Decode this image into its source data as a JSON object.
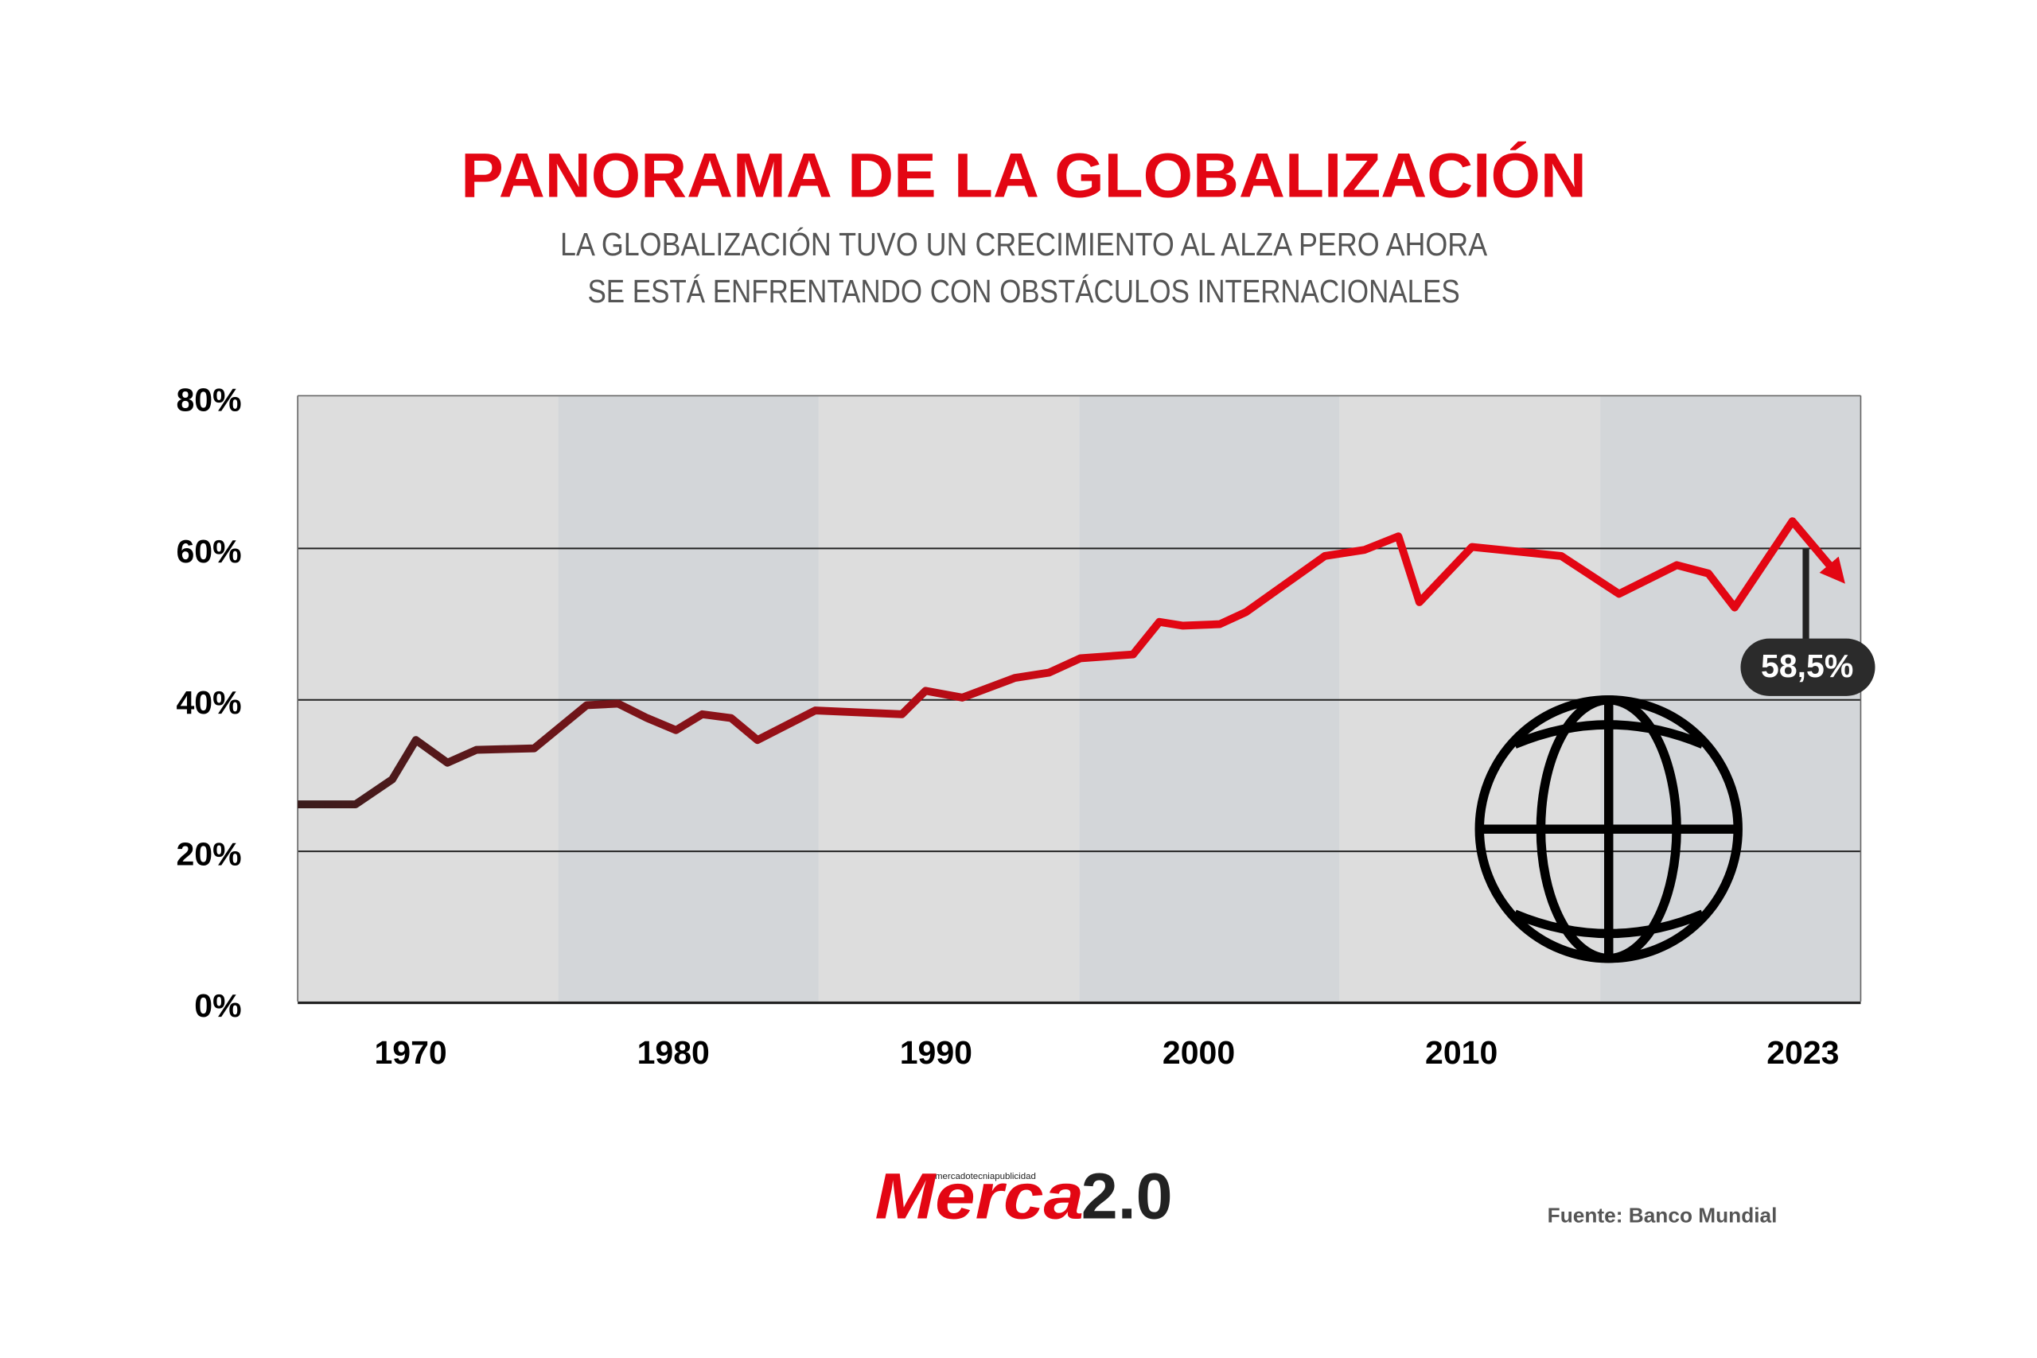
{
  "chart_data": {
    "type": "line",
    "title": "PANORAMA DE LA GLOBALIZACIÓN",
    "subtitle": [
      "LA GLOBALIZACIÓN TUVO UN CRECIMIENTO AL ALZA PERO AHORA",
      "SE ESTÁ ENFRENTANDO CON OBSTÁCULOS INTERNACIONALES"
    ],
    "x": [
      1965.7,
      1967.9,
      1969.3,
      1970.2,
      1971.4,
      1972.5,
      1974.7,
      1976.7,
      1977.9,
      1979.0,
      1980.1,
      1981.1,
      1982.2,
      1983.2,
      1985.4,
      1988.7,
      1989.6,
      1991.0,
      1993.0,
      1994.3,
      1995.5,
      1997.5,
      1998.5,
      1999.4,
      2000.8,
      2001.8,
      2003.3,
      2004.8,
      2006.3,
      2007.6,
      2008.4,
      2010.4,
      2013.8,
      2016.0,
      2018.2,
      2019.4,
      2020.4,
      2022.6,
      2024.3
    ],
    "series": [
      {
        "name": null,
        "color": "#e30613",
        "gradient": [
          "#3a1c1c",
          "#e30613"
        ],
        "values": [
          26.2,
          26.2,
          29.5,
          34.7,
          31.7,
          33.4,
          33.6,
          39.3,
          39.5,
          37.6,
          36.0,
          38.1,
          37.6,
          34.7,
          38.6,
          38.1,
          41.2,
          40.3,
          42.9,
          43.6,
          45.5,
          46.0,
          50.3,
          49.8,
          50.0,
          51.6,
          55.3,
          59.0,
          59.8,
          61.6,
          52.9,
          60.2,
          59.0,
          54.0,
          57.8,
          56.7,
          52.2,
          63.6,
          56.6
        ]
      }
    ],
    "xlim": [
      1965.7,
      2025.2
    ],
    "xticks": [
      1970,
      1980,
      1990,
      2000,
      2010,
      2023
    ],
    "ylim": [
      0,
      80
    ],
    "yticks": [
      {
        "value": 0,
        "label": "0%"
      },
      {
        "value": 20,
        "label": "20%"
      },
      {
        "value": 40,
        "label": "40%"
      },
      {
        "value": 60,
        "label": "60%"
      },
      {
        "value": 80,
        "label": "80%"
      }
    ],
    "grid": true,
    "annotation": "58,5%",
    "logo": {
      "tagline": "mercadotecniapublicidad",
      "name": "Merca",
      "version": "2.0"
    },
    "source": "Fuente:  Banco Mundial"
  }
}
